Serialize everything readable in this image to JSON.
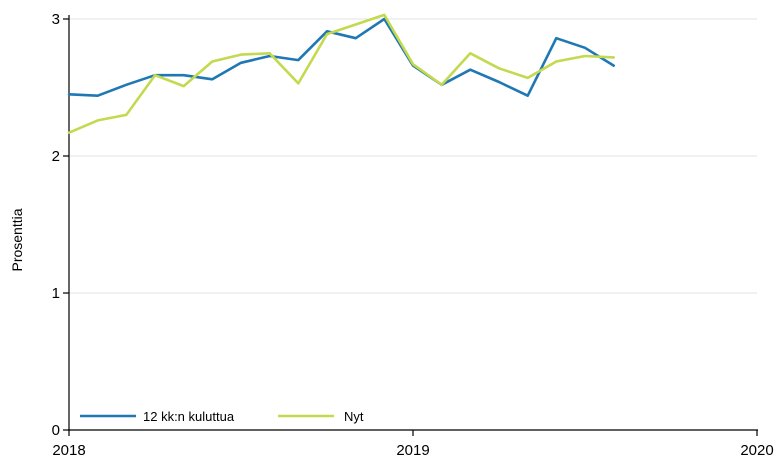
{
  "chart_data": {
    "type": "line",
    "title": "",
    "xlabel": "",
    "ylabel": "Prosenttia",
    "xlim": [
      "2018-01",
      "2020-01"
    ],
    "ylim": [
      0,
      3
    ],
    "y_ticks": [
      0,
      1,
      2,
      3
    ],
    "x_ticks": [
      "2018",
      "2019",
      "2020"
    ],
    "x": [
      "2018-01",
      "2018-02",
      "2018-03",
      "2018-04",
      "2018-05",
      "2018-06",
      "2018-07",
      "2018-08",
      "2018-09",
      "2018-10",
      "2018-11",
      "2018-12",
      "2019-01",
      "2019-02",
      "2019-03",
      "2019-04",
      "2019-05",
      "2019-06",
      "2019-07",
      "2019-08"
    ],
    "grid": "horizontal",
    "legend": "bottom-left",
    "series": [
      {
        "name": "12 kk:n kuluttua",
        "color": "#1f77b4",
        "values": [
          2.45,
          2.44,
          2.52,
          2.59,
          2.59,
          2.56,
          2.68,
          2.73,
          2.7,
          2.91,
          2.86,
          3.0,
          2.66,
          2.52,
          2.63,
          2.54,
          2.44,
          2.86,
          2.79,
          2.66
        ]
      },
      {
        "name": "Nyt",
        "color": "#c3d94e",
        "values": [
          2.17,
          2.26,
          2.3,
          2.59,
          2.51,
          2.69,
          2.74,
          2.75,
          2.53,
          2.89,
          2.96,
          3.03,
          2.67,
          2.52,
          2.75,
          2.64,
          2.57,
          2.69,
          2.73,
          2.72
        ]
      }
    ]
  }
}
